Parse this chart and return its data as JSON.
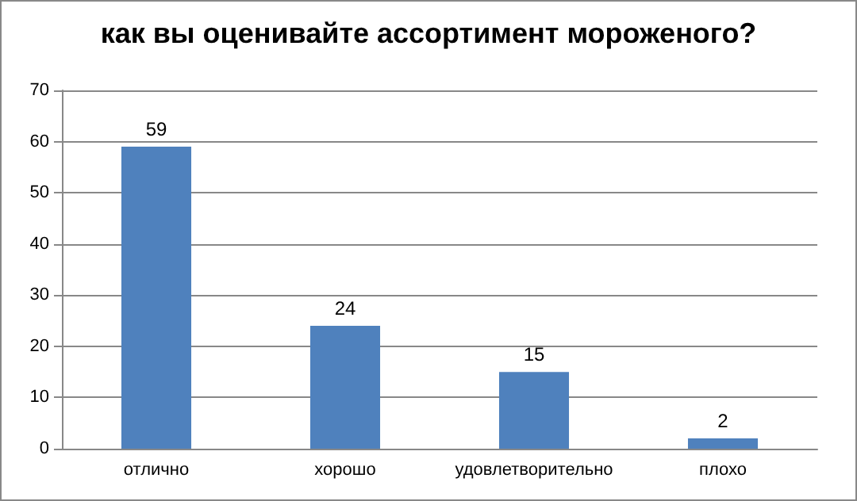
{
  "chart_data": {
    "type": "bar",
    "title": "как вы оценивайте ассортимент мороженого?",
    "categories": [
      "отлично",
      "хорошо",
      "удовлетворительно",
      "плохо"
    ],
    "values": [
      59,
      24,
      15,
      2
    ],
    "color": "#4f81bd",
    "ylim": [
      0,
      70
    ],
    "yticks": [
      0,
      10,
      20,
      30,
      40,
      50,
      60,
      70
    ],
    "grid": "y",
    "data_labels": true
  }
}
